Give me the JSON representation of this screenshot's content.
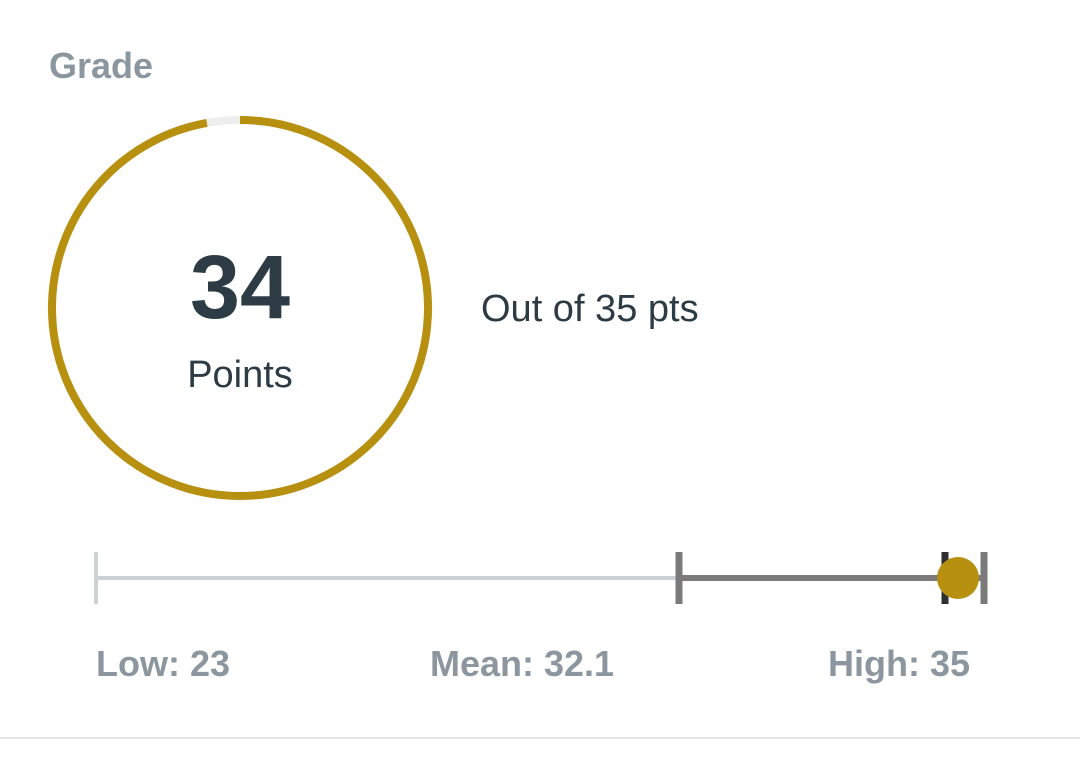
{
  "grade": {
    "section_label": "Grade",
    "score": "34",
    "score_caption": "Points",
    "out_of_text": "Out of 35 pts",
    "score_value": 34,
    "points_possible": 35,
    "accent_color": "#b8900f",
    "ring_track_color": "#eeeeee"
  },
  "distribution": {
    "low": 23,
    "mean": 32.1,
    "upper_quartile": 34,
    "high": 35,
    "student_score": 34,
    "low_label": "Low: 23",
    "mean_label": "Mean: 32.1",
    "high_label": "High: 35",
    "lower_track_color": "#ccd1d5",
    "upper_track_color": "#7a7a7a",
    "marker_color": "#b8900f"
  }
}
